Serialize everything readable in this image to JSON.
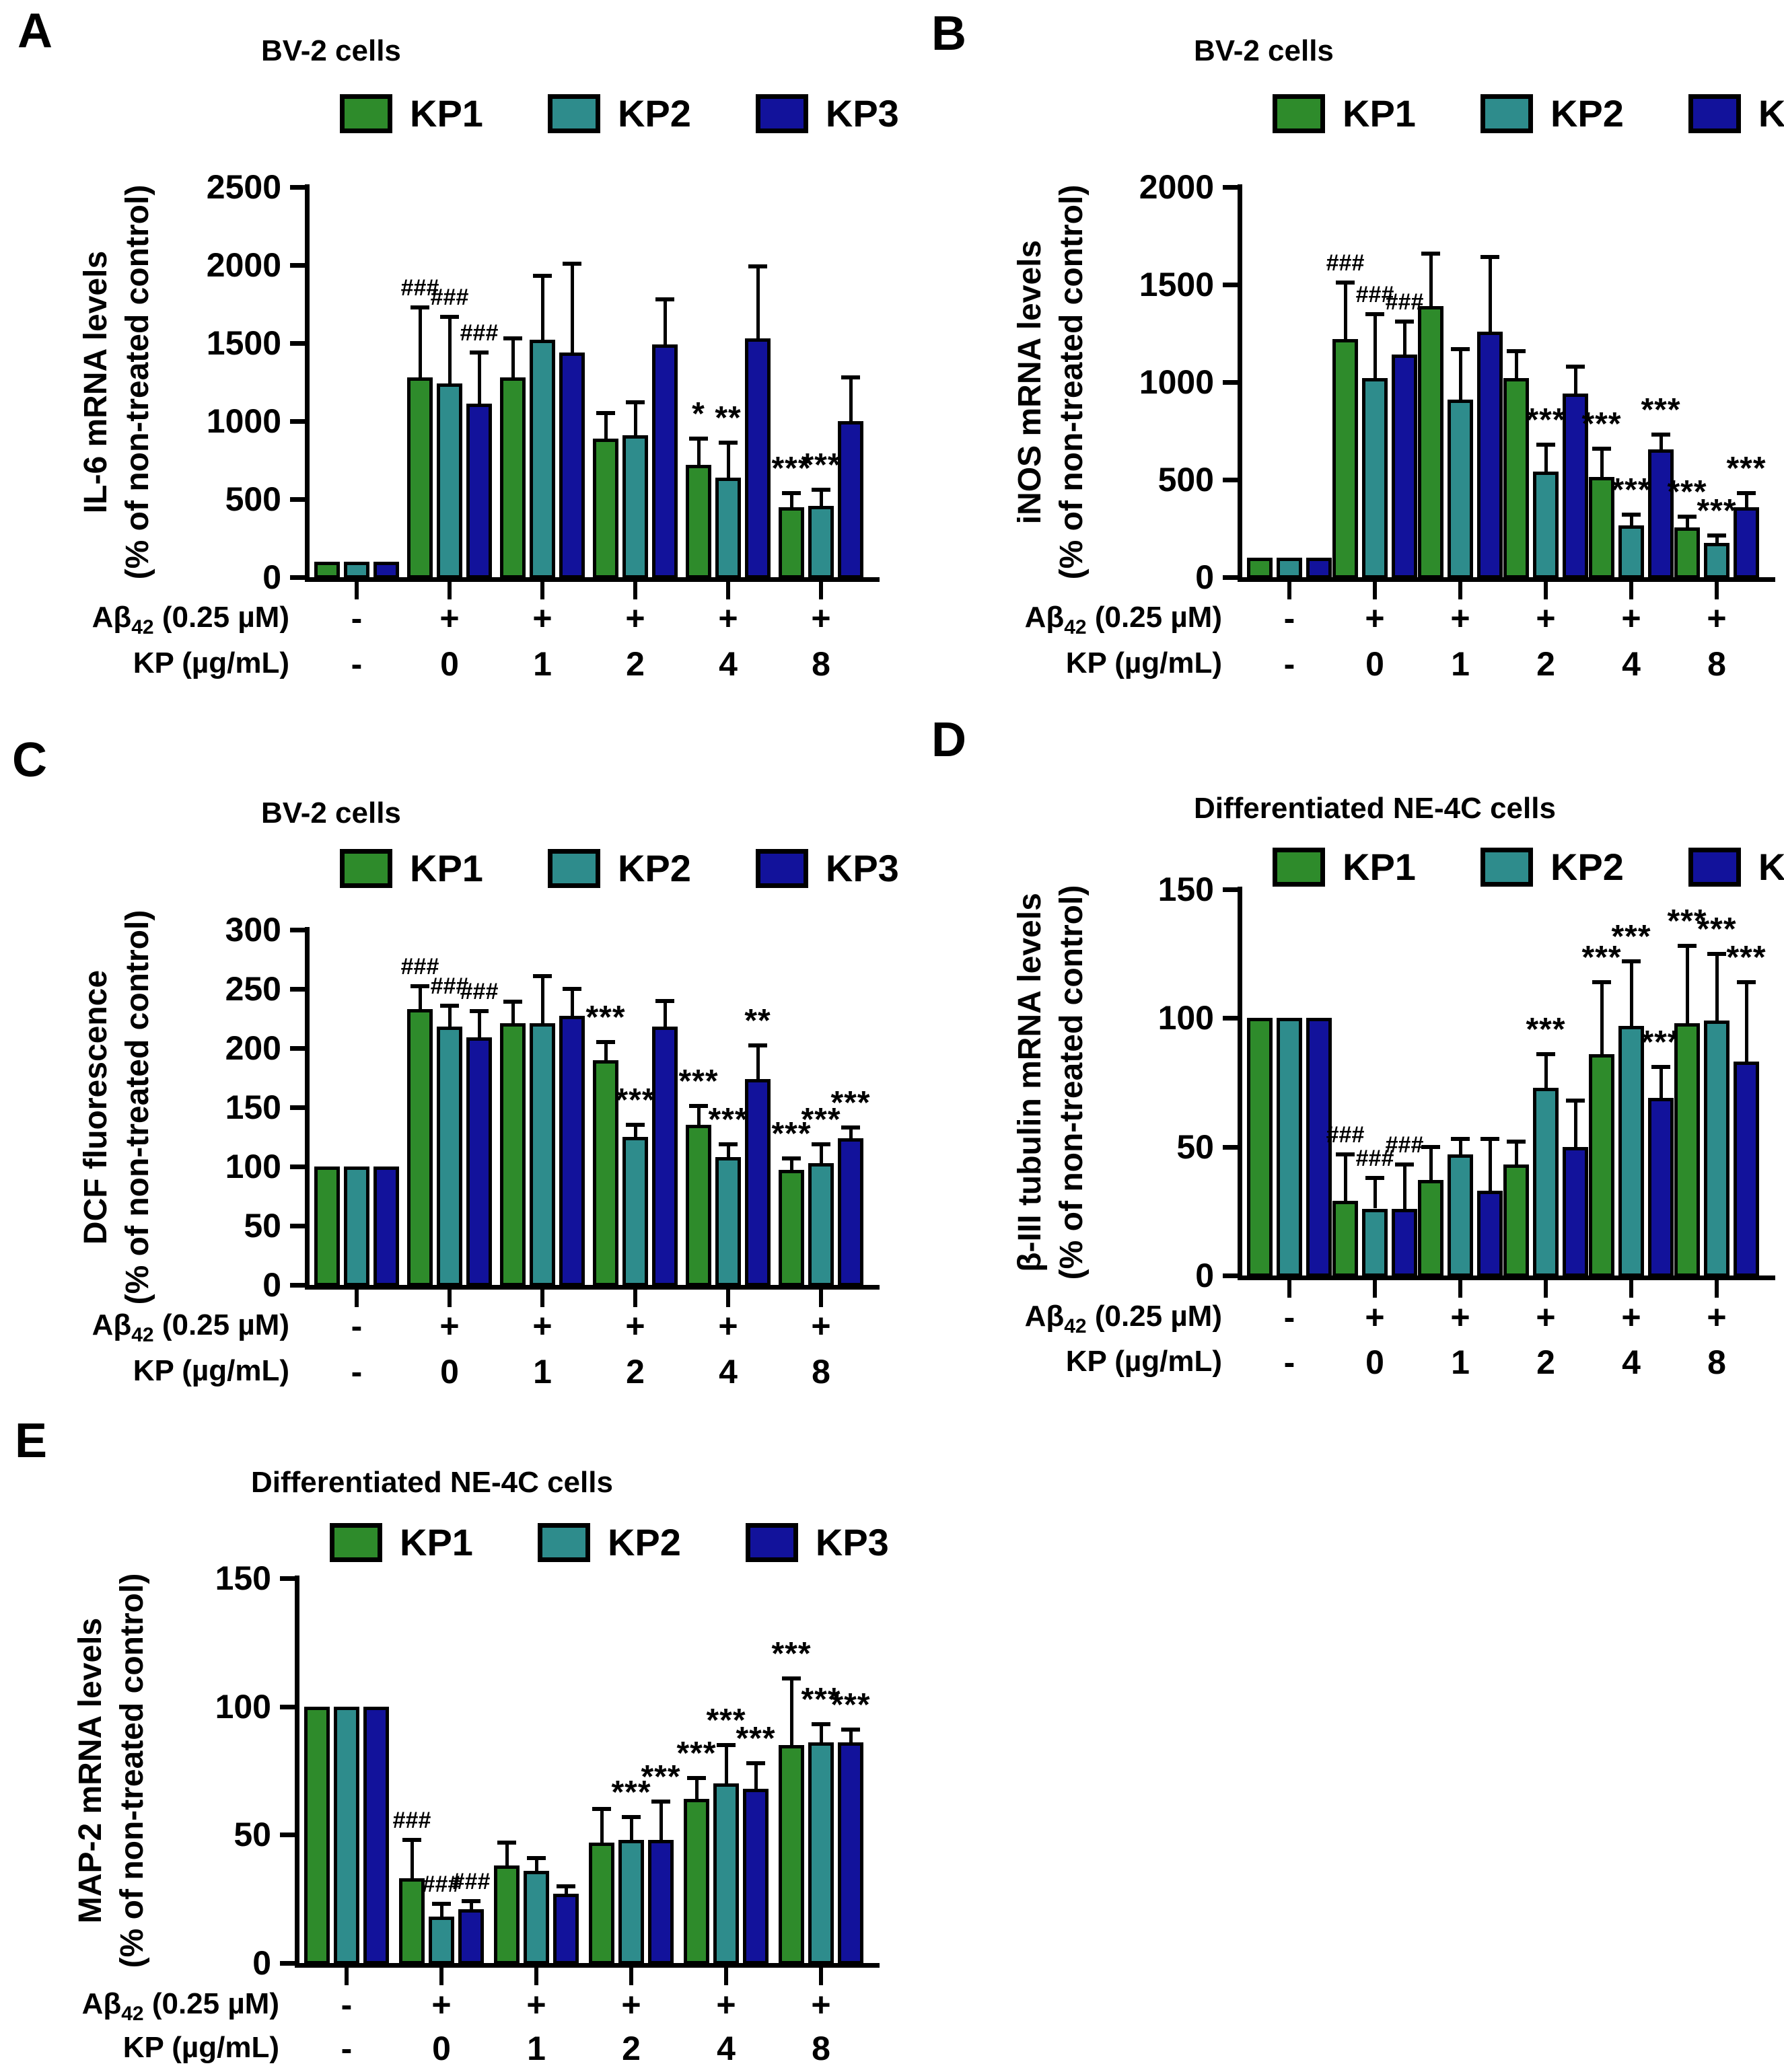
{
  "page": {
    "background": "#ffffff"
  },
  "series": [
    {
      "name": "KP1",
      "color": "#2e8b2b"
    },
    {
      "name": "KP2",
      "color": "#2e8c8c"
    },
    {
      "name": "KP3",
      "color": "#12129b"
    }
  ],
  "x_rows": {
    "row1_prefix": "Aβ",
    "row1_sub": "42",
    "row1_suffix": " (0.25 µM)",
    "row2_label": "KP (µg/mL)"
  },
  "chart_data": [
    {
      "id": "A",
      "panel_label": "A",
      "type": "bar",
      "title": "BV-2 cells",
      "ylabel": [
        "IL-6 mRNA levels",
        "(% of non-treated control)"
      ],
      "ylim": [
        0,
        2500
      ],
      "yticks": [
        "0",
        "500",
        "1000",
        "1500",
        "2000",
        "2500"
      ],
      "legend_position": "top",
      "grid": false,
      "ab_values": [
        "-",
        "+",
        "+",
        "+",
        "+",
        "+"
      ],
      "kp_values": [
        "-",
        "0",
        "1",
        "2",
        "4",
        "8"
      ],
      "groups": [
        {
          "values": [
            100,
            100,
            100
          ],
          "errors": [
            0,
            0,
            0
          ],
          "sig": [
            "",
            "",
            ""
          ]
        },
        {
          "values": [
            1280,
            1240,
            1110
          ],
          "errors": [
            450,
            430,
            330
          ],
          "sig": [
            "###",
            "###",
            "###"
          ]
        },
        {
          "values": [
            1280,
            1520,
            1440
          ],
          "errors": [
            250,
            410,
            570
          ],
          "sig": [
            "",
            "",
            ""
          ]
        },
        {
          "values": [
            890,
            910,
            1490
          ],
          "errors": [
            160,
            210,
            290
          ],
          "sig": [
            "",
            "",
            ""
          ]
        },
        {
          "values": [
            720,
            640,
            1530
          ],
          "errors": [
            170,
            220,
            460
          ],
          "sig": [
            "*",
            "**",
            ""
          ]
        },
        {
          "values": [
            450,
            455,
            1000
          ],
          "errors": [
            90,
            105,
            280
          ],
          "sig": [
            "***",
            "***",
            ""
          ]
        }
      ]
    },
    {
      "id": "B",
      "panel_label": "B",
      "type": "bar",
      "title": "BV-2 cells",
      "ylabel": [
        "iNOS mRNA levels",
        "(% of non-treated control)"
      ],
      "ylim": [
        0,
        2000
      ],
      "yticks": [
        "0",
        "500",
        "1000",
        "1500",
        "2000"
      ],
      "legend_position": "top",
      "grid": false,
      "ab_values": [
        "-",
        "+",
        "+",
        "+",
        "+",
        "+"
      ],
      "kp_values": [
        "-",
        "0",
        "1",
        "2",
        "4",
        "8"
      ],
      "groups": [
        {
          "values": [
            100,
            100,
            100
          ],
          "errors": [
            0,
            0,
            0
          ],
          "sig": [
            "",
            "",
            ""
          ]
        },
        {
          "values": [
            1220,
            1020,
            1140
          ],
          "errors": [
            290,
            330,
            170
          ],
          "sig": [
            "###",
            "###",
            "###"
          ]
        },
        {
          "values": [
            1390,
            910,
            1260
          ],
          "errors": [
            270,
            260,
            380
          ],
          "sig": [
            "",
            "",
            ""
          ]
        },
        {
          "values": [
            1020,
            540,
            940
          ],
          "errors": [
            140,
            140,
            140
          ],
          "sig": [
            "",
            "***",
            ""
          ]
        },
        {
          "values": [
            515,
            265,
            655
          ],
          "errors": [
            145,
            55,
            75
          ],
          "sig": [
            "***",
            "***",
            "***"
          ]
        },
        {
          "values": [
            255,
            175,
            360
          ],
          "errors": [
            55,
            40,
            70
          ],
          "sig": [
            "***",
            "***",
            "***"
          ]
        }
      ]
    },
    {
      "id": "C",
      "panel_label": "C",
      "type": "bar",
      "title": "BV-2 cells",
      "ylabel": [
        "DCF fluorescence",
        "(% of non-treated control)"
      ],
      "ylim": [
        0,
        300
      ],
      "yticks": [
        "0",
        "50",
        "100",
        "150",
        "200",
        "250",
        "300"
      ],
      "legend_position": "top",
      "grid": false,
      "ab_values": [
        "-",
        "+",
        "+",
        "+",
        "+",
        "+"
      ],
      "kp_values": [
        "-",
        "0",
        "1",
        "2",
        "4",
        "8"
      ],
      "groups": [
        {
          "values": [
            100,
            100,
            100
          ],
          "errors": [
            0,
            0,
            0
          ],
          "sig": [
            "",
            "",
            ""
          ]
        },
        {
          "values": [
            233,
            218,
            209
          ],
          "errors": [
            19,
            18,
            22
          ],
          "sig": [
            "###",
            "###",
            "###"
          ]
        },
        {
          "values": [
            221,
            221,
            227
          ],
          "errors": [
            18,
            40,
            23
          ],
          "sig": [
            "",
            "",
            ""
          ]
        },
        {
          "values": [
            190,
            125,
            218
          ],
          "errors": [
            15,
            10,
            22
          ],
          "sig": [
            "***",
            "***",
            ""
          ]
        },
        {
          "values": [
            135,
            108,
            174
          ],
          "errors": [
            16,
            11,
            28
          ],
          "sig": [
            "***",
            "***",
            "**"
          ]
        },
        {
          "values": [
            97,
            103,
            124
          ],
          "errors": [
            10,
            16,
            9
          ],
          "sig": [
            "***",
            "***",
            "***"
          ]
        }
      ]
    },
    {
      "id": "D",
      "panel_label": "D",
      "type": "bar",
      "title": "Differentiated NE-4C cells",
      "ylabel": [
        "β-III tubulin mRNA levels",
        "(% of non-treated control)"
      ],
      "ylim": [
        0,
        150
      ],
      "yticks": [
        "0",
        "50",
        "100",
        "150"
      ],
      "legend_position": "top",
      "grid": false,
      "ab_values": [
        "-",
        "+",
        "+",
        "+",
        "+",
        "+"
      ],
      "kp_values": [
        "-",
        "0",
        "1",
        "2",
        "4",
        "8"
      ],
      "groups": [
        {
          "values": [
            100,
            100,
            100
          ],
          "errors": [
            0,
            0,
            0
          ],
          "sig": [
            "",
            "",
            ""
          ]
        },
        {
          "values": [
            29,
            26,
            26
          ],
          "errors": [
            18,
            12,
            17
          ],
          "sig": [
            "###",
            "###",
            "###"
          ]
        },
        {
          "values": [
            37,
            47,
            33
          ],
          "errors": [
            13,
            6,
            20
          ],
          "sig": [
            "",
            "",
            ""
          ]
        },
        {
          "values": [
            43,
            73,
            50
          ],
          "errors": [
            9,
            13,
            18
          ],
          "sig": [
            "",
            "***",
            ""
          ]
        },
        {
          "values": [
            86,
            97,
            69
          ],
          "errors": [
            28,
            25,
            12
          ],
          "sig": [
            "***",
            "***",
            "***"
          ]
        },
        {
          "values": [
            98,
            99,
            83
          ],
          "errors": [
            30,
            26,
            31
          ],
          "sig": [
            "***",
            "***",
            "***"
          ]
        }
      ]
    },
    {
      "id": "E",
      "panel_label": "E",
      "type": "bar",
      "title": "Differentiated NE-4C cells",
      "ylabel": [
        "MAP-2 mRNA levels",
        "(% of non-treated control)"
      ],
      "ylim": [
        0,
        150
      ],
      "yticks": [
        "0",
        "50",
        "100",
        "150"
      ],
      "legend_position": "top",
      "grid": false,
      "ab_values": [
        "-",
        "+",
        "+",
        "+",
        "+",
        "+"
      ],
      "kp_values": [
        "-",
        "0",
        "1",
        "2",
        "4",
        "8"
      ],
      "groups": [
        {
          "values": [
            100,
            100,
            100
          ],
          "errors": [
            0,
            0,
            0
          ],
          "sig": [
            "",
            "",
            ""
          ]
        },
        {
          "values": [
            33,
            18,
            21
          ],
          "errors": [
            15,
            5,
            3
          ],
          "sig": [
            "###",
            "###",
            "###"
          ]
        },
        {
          "values": [
            38,
            36,
            27
          ],
          "errors": [
            9,
            5,
            3
          ],
          "sig": [
            "",
            "",
            ""
          ]
        },
        {
          "values": [
            47,
            48,
            48
          ],
          "errors": [
            13,
            9,
            15
          ],
          "sig": [
            "",
            "***",
            "***"
          ]
        },
        {
          "values": [
            64,
            70,
            68
          ],
          "errors": [
            8,
            15,
            10
          ],
          "sig": [
            "***",
            "***",
            "***"
          ]
        },
        {
          "values": [
            85,
            86,
            86
          ],
          "errors": [
            26,
            7,
            5
          ],
          "sig": [
            "***",
            "***",
            "***"
          ]
        }
      ]
    }
  ]
}
